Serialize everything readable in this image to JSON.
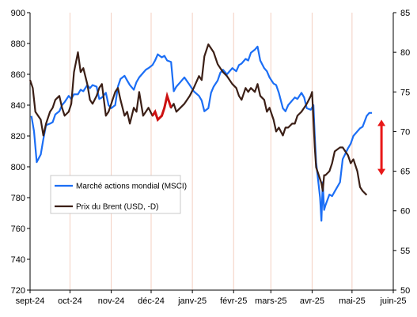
{
  "chart_data": {
    "type": "line",
    "x_axis": {
      "type": "date",
      "ticks": [
        "sept-24",
        "oct-24",
        "nov-24",
        "déc-24",
        "janv-25",
        "févr-25",
        "mars-25",
        "avr-25",
        "mai-25",
        "juin-25"
      ],
      "tick_dates": [
        "2024-09-01",
        "2024-10-01",
        "2024-11-01",
        "2024-12-01",
        "2025-01-01",
        "2025-02-01",
        "2025-03-01",
        "2025-04-01",
        "2025-05-01",
        "2025-06-01"
      ],
      "range": [
        "2024-09-01",
        "2025-06-01"
      ],
      "gridlines": true
    },
    "y_left": {
      "min": 720,
      "max": 900,
      "step": 20,
      "ticks": [
        720,
        740,
        760,
        780,
        800,
        820,
        840,
        860,
        880,
        900
      ]
    },
    "y_right": {
      "min": 50,
      "max": 85,
      "step": 5,
      "ticks": [
        50,
        55,
        60,
        65,
        70,
        75,
        80,
        85
      ]
    },
    "legend": {
      "placement": "center-left",
      "entries": [
        "Marché actions mondial (MSCI)",
        "Prix du Brent (USD, -D)"
      ]
    },
    "series": [
      {
        "name": "Marché actions mondial (MSCI)",
        "axis": "left",
        "color": "#1b6ef5",
        "points": [
          [
            "2024-09-02",
            833
          ],
          [
            "2024-09-04",
            823
          ],
          [
            "2024-09-06",
            803
          ],
          [
            "2024-09-09",
            808
          ],
          [
            "2024-09-11",
            818
          ],
          [
            "2024-09-13",
            827
          ],
          [
            "2024-09-16",
            828
          ],
          [
            "2024-09-18",
            829
          ],
          [
            "2024-09-20",
            834
          ],
          [
            "2024-09-23",
            836
          ],
          [
            "2024-09-25",
            840
          ],
          [
            "2024-09-27",
            842
          ],
          [
            "2024-09-30",
            846
          ],
          [
            "2024-10-02",
            844
          ],
          [
            "2024-10-04",
            847
          ],
          [
            "2024-10-07",
            847
          ],
          [
            "2024-10-09",
            850
          ],
          [
            "2024-10-11",
            849
          ],
          [
            "2024-10-14",
            853
          ],
          [
            "2024-10-16",
            851
          ],
          [
            "2024-10-18",
            853
          ],
          [
            "2024-10-21",
            852
          ],
          [
            "2024-10-23",
            844
          ],
          [
            "2024-10-25",
            845
          ],
          [
            "2024-10-28",
            848
          ],
          [
            "2024-10-30",
            840
          ],
          [
            "2024-11-01",
            838
          ],
          [
            "2024-11-04",
            840
          ],
          [
            "2024-11-06",
            852
          ],
          [
            "2024-11-08",
            857
          ],
          [
            "2024-11-11",
            859
          ],
          [
            "2024-11-13",
            856
          ],
          [
            "2024-11-15",
            853
          ],
          [
            "2024-11-18",
            850
          ],
          [
            "2024-11-20",
            855
          ],
          [
            "2024-11-22",
            858
          ],
          [
            "2024-11-25",
            861
          ],
          [
            "2024-11-27",
            863
          ],
          [
            "2024-11-29",
            864
          ],
          [
            "2024-12-02",
            866
          ],
          [
            "2024-12-04",
            869
          ],
          [
            "2024-12-06",
            873
          ],
          [
            "2024-12-09",
            871
          ],
          [
            "2024-12-11",
            872
          ],
          [
            "2024-12-13",
            869
          ],
          [
            "2024-12-16",
            868
          ],
          [
            "2024-12-18",
            849
          ],
          [
            "2024-12-20",
            852
          ],
          [
            "2024-12-23",
            855
          ],
          [
            "2024-12-26",
            858
          ],
          [
            "2024-12-30",
            853
          ],
          [
            "2025-01-02",
            849
          ],
          [
            "2025-01-06",
            846
          ],
          [
            "2025-01-08",
            843
          ],
          [
            "2025-01-10",
            836
          ],
          [
            "2025-01-13",
            838
          ],
          [
            "2025-01-15",
            848
          ],
          [
            "2025-01-17",
            852
          ],
          [
            "2025-01-20",
            856
          ],
          [
            "2025-01-22",
            861
          ],
          [
            "2025-01-24",
            863
          ],
          [
            "2025-01-27",
            860
          ],
          [
            "2025-01-29",
            862
          ],
          [
            "2025-01-31",
            864
          ],
          [
            "2025-02-03",
            862
          ],
          [
            "2025-02-05",
            866
          ],
          [
            "2025-02-07",
            867
          ],
          [
            "2025-02-10",
            870
          ],
          [
            "2025-02-12",
            869
          ],
          [
            "2025-02-14",
            874
          ],
          [
            "2025-02-17",
            876
          ],
          [
            "2025-02-19",
            878
          ],
          [
            "2025-02-21",
            869
          ],
          [
            "2025-02-24",
            864
          ],
          [
            "2025-02-26",
            862
          ],
          [
            "2025-02-28",
            858
          ],
          [
            "2025-03-03",
            854
          ],
          [
            "2025-03-05",
            853
          ],
          [
            "2025-03-07",
            848
          ],
          [
            "2025-03-10",
            838
          ],
          [
            "2025-03-12",
            836
          ],
          [
            "2025-03-14",
            840
          ],
          [
            "2025-03-17",
            843
          ],
          [
            "2025-03-19",
            845
          ],
          [
            "2025-03-21",
            844
          ],
          [
            "2025-03-24",
            848
          ],
          [
            "2025-03-26",
            845
          ],
          [
            "2025-03-28",
            838
          ],
          [
            "2025-03-31",
            837
          ],
          [
            "2025-04-02",
            840
          ],
          [
            "2025-04-03",
            820
          ],
          [
            "2025-04-04",
            803
          ],
          [
            "2025-04-07",
            780
          ],
          [
            "2025-04-08",
            765
          ],
          [
            "2025-04-09",
            790
          ],
          [
            "2025-04-10",
            772
          ],
          [
            "2025-04-11",
            775
          ],
          [
            "2025-04-14",
            782
          ],
          [
            "2025-04-16",
            781
          ],
          [
            "2025-04-18",
            784
          ],
          [
            "2025-04-22",
            790
          ],
          [
            "2025-04-24",
            805
          ],
          [
            "2025-04-28",
            812
          ],
          [
            "2025-04-30",
            815
          ],
          [
            "2025-05-02",
            820
          ],
          [
            "2025-05-05",
            823
          ],
          [
            "2025-05-07",
            825
          ],
          [
            "2025-05-09",
            826
          ],
          [
            "2025-05-12",
            833
          ],
          [
            "2025-05-14",
            835
          ],
          [
            "2025-05-16",
            835
          ]
        ]
      },
      {
        "name": "Prix du Brent (USD, -D)",
        "axis": "right",
        "color": "#3b1f16",
        "points": [
          [
            "2024-09-01",
            76.5
          ],
          [
            "2024-09-03",
            75.5
          ],
          [
            "2024-09-05",
            72.5
          ],
          [
            "2024-09-09",
            71.5
          ],
          [
            "2024-09-11",
            69.5
          ],
          [
            "2024-09-13",
            71.0
          ],
          [
            "2024-09-16",
            72.5
          ],
          [
            "2024-09-18",
            73.0
          ],
          [
            "2024-09-20",
            74.0
          ],
          [
            "2024-09-23",
            74.5
          ],
          [
            "2024-09-25",
            73.0
          ],
          [
            "2024-09-27",
            72.0
          ],
          [
            "2024-09-30",
            72.5
          ],
          [
            "2024-10-02",
            73.5
          ],
          [
            "2024-10-04",
            77.5
          ],
          [
            "2024-10-07",
            80.0
          ],
          [
            "2024-10-09",
            77.5
          ],
          [
            "2024-10-11",
            78.0
          ],
          [
            "2024-10-14",
            76.0
          ],
          [
            "2024-10-16",
            74.0
          ],
          [
            "2024-10-18",
            73.5
          ],
          [
            "2024-10-21",
            74.5
          ],
          [
            "2024-10-23",
            75.5
          ],
          [
            "2024-10-25",
            76.0
          ],
          [
            "2024-10-28",
            72.0
          ],
          [
            "2024-10-30",
            72.5
          ],
          [
            "2024-11-01",
            73.5
          ],
          [
            "2024-11-04",
            75.0
          ],
          [
            "2024-11-06",
            75.5
          ],
          [
            "2024-11-08",
            74.0
          ],
          [
            "2024-11-11",
            72.0
          ],
          [
            "2024-11-13",
            72.5
          ],
          [
            "2024-11-15",
            71.0
          ],
          [
            "2024-11-18",
            73.0
          ],
          [
            "2024-11-20",
            72.5
          ],
          [
            "2024-11-22",
            75.0
          ],
          [
            "2024-11-25",
            72.0
          ],
          [
            "2024-11-27",
            72.5
          ],
          [
            "2024-11-29",
            73.0
          ],
          [
            "2024-12-02",
            72.0
          ],
          [
            "2024-12-04",
            72.5
          ],
          [
            "2024-12-06",
            71.5
          ],
          [
            "2024-12-09",
            72.0
          ],
          [
            "2024-12-11",
            73.0
          ],
          [
            "2024-12-13",
            74.5
          ],
          [
            "2024-12-16",
            73.0
          ],
          [
            "2024-12-18",
            73.5
          ],
          [
            "2024-12-20",
            72.5
          ],
          [
            "2024-12-23",
            73.0
          ],
          [
            "2024-12-26",
            73.5
          ],
          [
            "2024-12-30",
            74.5
          ],
          [
            "2025-01-02",
            75.5
          ],
          [
            "2025-01-06",
            77.0
          ],
          [
            "2025-01-08",
            76.5
          ],
          [
            "2025-01-10",
            79.5
          ],
          [
            "2025-01-13",
            81.0
          ],
          [
            "2025-01-15",
            80.5
          ],
          [
            "2025-01-17",
            80.0
          ],
          [
            "2025-01-20",
            78.5
          ],
          [
            "2025-01-22",
            78.0
          ],
          [
            "2025-01-24",
            77.5
          ],
          [
            "2025-01-27",
            77.0
          ],
          [
            "2025-01-29",
            76.5
          ],
          [
            "2025-01-31",
            76.0
          ],
          [
            "2025-02-03",
            75.5
          ],
          [
            "2025-02-05",
            74.5
          ],
          [
            "2025-02-07",
            74.0
          ],
          [
            "2025-02-10",
            75.5
          ],
          [
            "2025-02-12",
            75.0
          ],
          [
            "2025-02-14",
            75.5
          ],
          [
            "2025-02-17",
            75.0
          ],
          [
            "2025-02-19",
            76.0
          ],
          [
            "2025-02-21",
            74.5
          ],
          [
            "2025-02-24",
            74.0
          ],
          [
            "2025-02-26",
            72.5
          ],
          [
            "2025-02-28",
            73.0
          ],
          [
            "2025-03-03",
            71.5
          ],
          [
            "2025-03-05",
            70.0
          ],
          [
            "2025-03-07",
            70.5
          ],
          [
            "2025-03-10",
            69.5
          ],
          [
            "2025-03-12",
            70.5
          ],
          [
            "2025-03-14",
            70.5
          ],
          [
            "2025-03-17",
            71.0
          ],
          [
            "2025-03-19",
            71.0
          ],
          [
            "2025-03-21",
            72.0
          ],
          [
            "2025-03-24",
            72.5
          ],
          [
            "2025-03-26",
            73.0
          ],
          [
            "2025-03-28",
            73.5
          ],
          [
            "2025-03-31",
            74.5
          ],
          [
            "2025-04-01",
            75.0
          ],
          [
            "2025-04-03",
            68.0
          ],
          [
            "2025-04-04",
            65.5
          ],
          [
            "2025-04-07",
            64.0
          ],
          [
            "2025-04-08",
            63.5
          ],
          [
            "2025-04-09",
            62.5
          ],
          [
            "2025-04-10",
            64.5
          ],
          [
            "2025-04-11",
            64.5
          ],
          [
            "2025-04-14",
            65.0
          ],
          [
            "2025-04-16",
            66.0
          ],
          [
            "2025-04-18",
            67.5
          ],
          [
            "2025-04-22",
            68.0
          ],
          [
            "2025-04-24",
            68.0
          ],
          [
            "2025-04-28",
            67.0
          ],
          [
            "2025-04-30",
            66.0
          ],
          [
            "2025-05-02",
            66.5
          ],
          [
            "2025-05-05",
            65.0
          ],
          [
            "2025-05-07",
            63.0
          ],
          [
            "2025-05-09",
            62.5
          ],
          [
            "2025-05-12",
            62.0
          ]
        ]
      }
    ],
    "annotations": [
      {
        "type": "highlight",
        "color": "#cc1111",
        "on_series": "Prix du Brent (USD, -D)",
        "from": "2024-12-02",
        "to": "2024-12-16"
      },
      {
        "type": "double-arrow",
        "color": "#e81818",
        "x": "2025-05-16",
        "axis": "right",
        "from": 64.5,
        "to": 71.5
      }
    ],
    "colors": {
      "grid": "#f4cfc1",
      "axis": "#000000",
      "msci": "#1b6ef5",
      "brent": "#3b1f16",
      "annotation": "#e81818"
    }
  }
}
